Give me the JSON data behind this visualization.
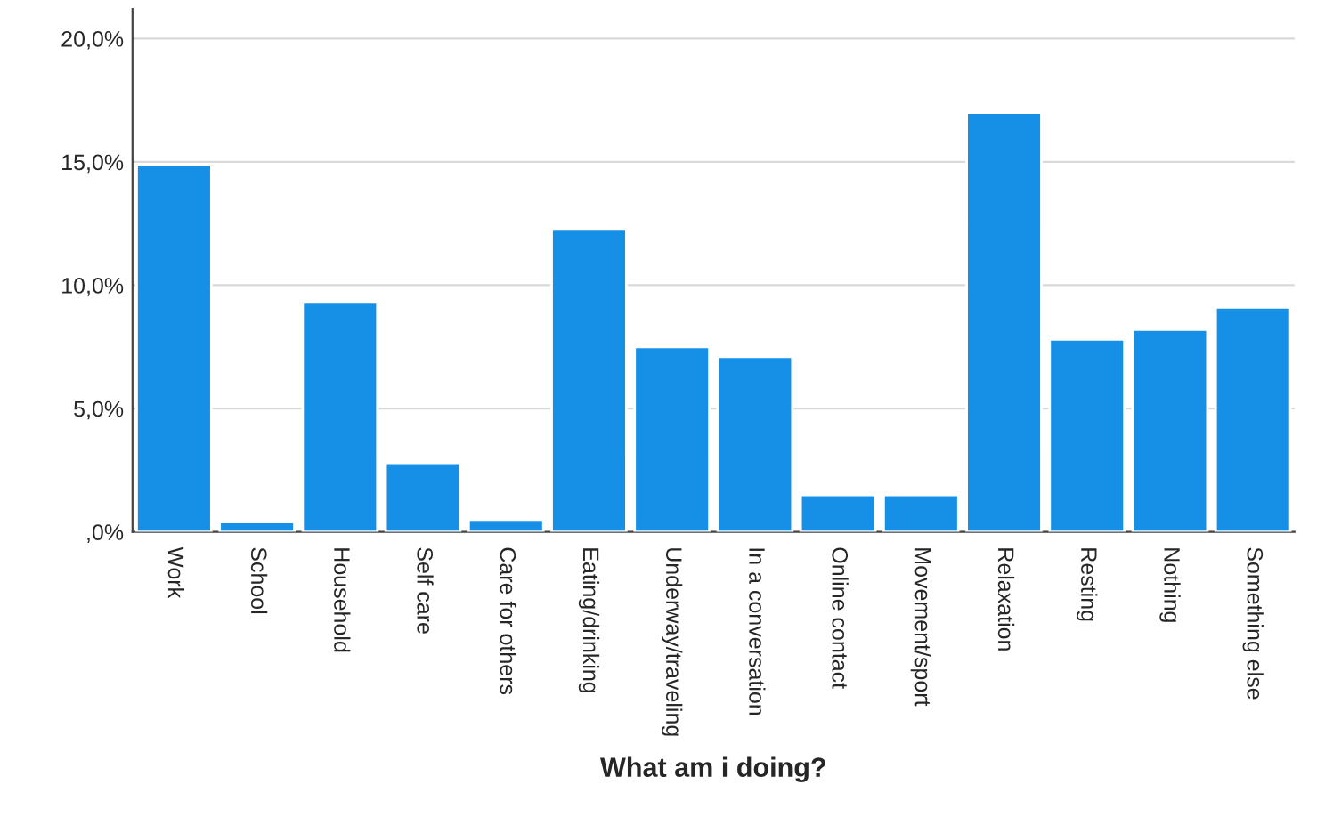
{
  "chart_data": {
    "type": "bar",
    "xlabel": "What am i doing?",
    "categories": [
      "Work",
      "School",
      "Household",
      "Self care",
      "Care for others",
      "Eating/drinking",
      "Underway/traveling",
      "In a conversation",
      "Online contact",
      "Movement/sport",
      "Relaxation",
      "Resting",
      "Nothing",
      "Something else"
    ],
    "values": [
      14.9,
      0.4,
      9.3,
      2.8,
      0.5,
      12.3,
      7.5,
      7.1,
      1.5,
      1.5,
      17.0,
      7.8,
      8.2,
      9.1
    ],
    "color": "#1690e6",
    "ylim": [
      0,
      21.2
    ],
    "yticks": [
      {
        "value": 0,
        "label": ",0%"
      },
      {
        "value": 5,
        "label": "5,0%"
      },
      {
        "value": 10,
        "label": "10,0%"
      },
      {
        "value": 15,
        "label": "15,0%"
      },
      {
        "value": 20,
        "label": "20,0%"
      }
    ],
    "grid": "y"
  }
}
